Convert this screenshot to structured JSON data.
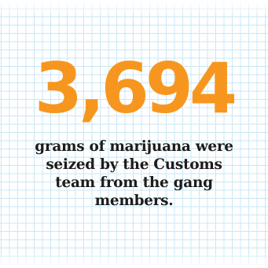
{
  "stat": {
    "value": "3,694",
    "description": "grams of marijuana were seized by the Customs team from the gang members.",
    "accent_color": "#f7961e",
    "text_color": "#1c1c1c",
    "grid_color": "#c9e7f4"
  }
}
